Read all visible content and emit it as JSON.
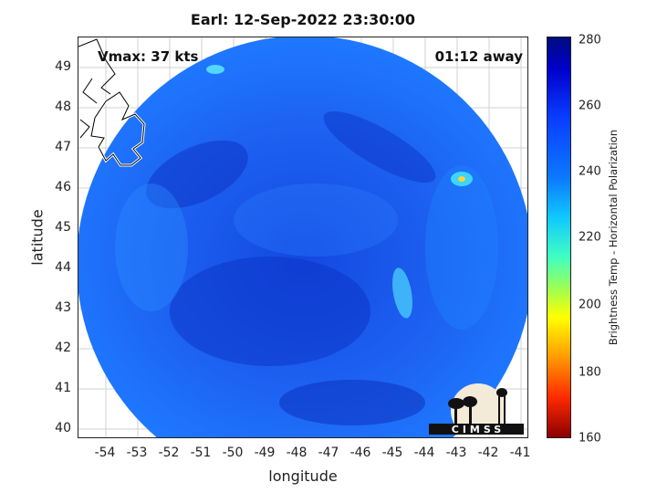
{
  "title": "Earl: 12-Sep-2022 23:30:00",
  "annotations": {
    "vmax": "Vmax: 37 kts",
    "away": "01:12 away"
  },
  "axes": {
    "xlabel": "longitude",
    "ylabel": "latitude",
    "xticks": [
      "-54",
      "-53",
      "-52",
      "-51",
      "-50",
      "-49",
      "-48",
      "-47",
      "-46",
      "-45",
      "-44",
      "-43",
      "-42",
      "-41"
    ],
    "yticks": [
      "49",
      "48",
      "47",
      "46",
      "45",
      "44",
      "43",
      "42",
      "41",
      "40"
    ]
  },
  "colorbar": {
    "label": "Brightness Temp - Horizontal Polarization",
    "ticks": [
      "280",
      "260",
      "240",
      "220",
      "200",
      "180",
      "160"
    ]
  },
  "logo": {
    "text": "CIMSS"
  },
  "colors": {
    "swath_base": "#1e5cf0",
    "swath_dark": "#0b30c8",
    "swath_light": "#1d9cff",
    "hotspot": "#ffd23c"
  }
}
